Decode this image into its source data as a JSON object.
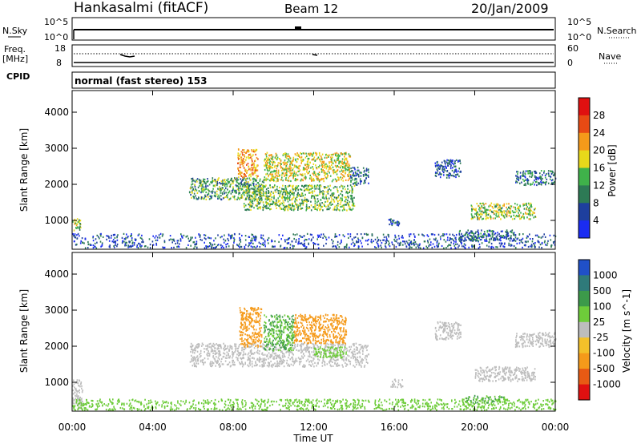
{
  "header": {
    "station": "Hankasalmi (fitACF)",
    "beam": "Beam 12",
    "date": "20/Jan/2009"
  },
  "status_panels": {
    "nsky": {
      "label": "N.Sky",
      "top_tick": "10^5",
      "bottom_tick": "10^0",
      "right_label": "N.Search",
      "right_top_tick": "10^5",
      "right_bottom_tick": "10^0"
    },
    "freq": {
      "label_line1": "Freq.",
      "label_line2": "[MHz]",
      "top_tick": "18",
      "bottom_tick": "8",
      "right_label": "Nave",
      "right_top_tick": "60",
      "right_bottom_tick": "0"
    },
    "cpid": {
      "label": "CPID",
      "mode_text": "normal (fast stereo) 153"
    }
  },
  "chart_data": [
    {
      "type": "heatmap",
      "title": "Power [dB]",
      "ylabel": "Slant Range [km]",
      "xlabel": "Time UT",
      "x_ticks": [
        "00:00",
        "04:00",
        "08:00",
        "12:00",
        "16:00",
        "20:00",
        "00:00"
      ],
      "xlim_hours": [
        0,
        24
      ],
      "y_ticks": [
        1000,
        2000,
        3000,
        4000
      ],
      "ylim": [
        200,
        4600
      ],
      "colorbar_label": "Power [dB]",
      "colorbar_ticks": [
        4,
        8,
        12,
        16,
        20,
        24,
        28
      ],
      "colorbar_colors": [
        "#1a2cf2",
        "#1e3f9e",
        "#2d7a55",
        "#3fb24a",
        "#e8d81a",
        "#f59a1a",
        "#e84a14",
        "#e01010"
      ],
      "echo_regions": [
        {
          "t_start": 0.0,
          "t_end": 0.4,
          "r_start": 700,
          "r_end": 1100,
          "value": 16
        },
        {
          "t_start": 0.0,
          "t_end": 24.0,
          "r_start": 250,
          "r_end": 650,
          "value": 6
        },
        {
          "t_start": 5.8,
          "t_end": 9.5,
          "r_start": 1600,
          "r_end": 2200,
          "value": 12
        },
        {
          "t_start": 8.2,
          "t_end": 9.2,
          "r_start": 2200,
          "r_end": 3000,
          "value": 22
        },
        {
          "t_start": 9.5,
          "t_end": 13.8,
          "r_start": 2100,
          "r_end": 2900,
          "value": 18
        },
        {
          "t_start": 8.5,
          "t_end": 14.0,
          "r_start": 1300,
          "r_end": 2000,
          "value": 14
        },
        {
          "t_start": 13.8,
          "t_end": 14.7,
          "r_start": 2000,
          "r_end": 2500,
          "value": 8
        },
        {
          "t_start": 15.7,
          "t_end": 16.3,
          "r_start": 880,
          "r_end": 1100,
          "value": 6
        },
        {
          "t_start": 18.0,
          "t_end": 19.3,
          "r_start": 2200,
          "r_end": 2700,
          "value": 6
        },
        {
          "t_start": 19.8,
          "t_end": 23.0,
          "r_start": 1050,
          "r_end": 1500,
          "value": 16
        },
        {
          "t_start": 22.0,
          "t_end": 24.0,
          "r_start": 2000,
          "r_end": 2400,
          "value": 8
        },
        {
          "t_start": 19.2,
          "t_end": 22.0,
          "r_start": 450,
          "r_end": 750,
          "value": 8
        }
      ]
    },
    {
      "type": "heatmap",
      "title": "Velocity [m s^-1]",
      "ylabel": "Slant Range [km]",
      "xlabel": "Time UT",
      "x_ticks": [
        "00:00",
        "04:00",
        "08:00",
        "12:00",
        "16:00",
        "20:00",
        "00:00"
      ],
      "xlim_hours": [
        0,
        24
      ],
      "y_ticks": [
        1000,
        2000,
        3000,
        4000
      ],
      "ylim": [
        200,
        4600
      ],
      "colorbar_label": "Velocity [m s^-1]",
      "colorbar_ticks": [
        1000,
        500,
        100,
        25,
        -25,
        -100,
        -500,
        -1000
      ],
      "colorbar_colors": [
        "#2050c8",
        "#2f7a7a",
        "#3c9a4a",
        "#6ecc3a",
        "#bdbdbd",
        "#f3c12a",
        "#f59a1a",
        "#e85a14",
        "#e01010"
      ],
      "echo_regions": [
        {
          "t_start": 0.0,
          "t_end": 0.5,
          "r_start": 250,
          "r_end": 1100,
          "value": 0
        },
        {
          "t_start": 0.0,
          "t_end": 24.0,
          "r_start": 250,
          "r_end": 550,
          "value": 60
        },
        {
          "t_start": 5.8,
          "t_end": 14.7,
          "r_start": 1450,
          "r_end": 2100,
          "value": 0
        },
        {
          "t_start": 8.3,
          "t_end": 9.4,
          "r_start": 2000,
          "r_end": 3100,
          "value": -300
        },
        {
          "t_start": 9.5,
          "t_end": 11.0,
          "r_start": 1900,
          "r_end": 2900,
          "value": 100
        },
        {
          "t_start": 11.0,
          "t_end": 13.6,
          "r_start": 2100,
          "r_end": 2900,
          "value": -300
        },
        {
          "t_start": 12.0,
          "t_end": 13.6,
          "r_start": 1700,
          "r_end": 2000,
          "value": 60
        },
        {
          "t_start": 15.8,
          "t_end": 16.4,
          "r_start": 880,
          "r_end": 1100,
          "value": 0
        },
        {
          "t_start": 18.0,
          "t_end": 19.3,
          "r_start": 2200,
          "r_end": 2700,
          "value": 0
        },
        {
          "t_start": 20.0,
          "t_end": 23.0,
          "r_start": 1050,
          "r_end": 1450,
          "value": 0
        },
        {
          "t_start": 22.0,
          "t_end": 24.0,
          "r_start": 2000,
          "r_end": 2400,
          "value": 0
        },
        {
          "t_start": 19.5,
          "t_end": 21.5,
          "r_start": 450,
          "r_end": 650,
          "value": 100
        }
      ]
    }
  ]
}
